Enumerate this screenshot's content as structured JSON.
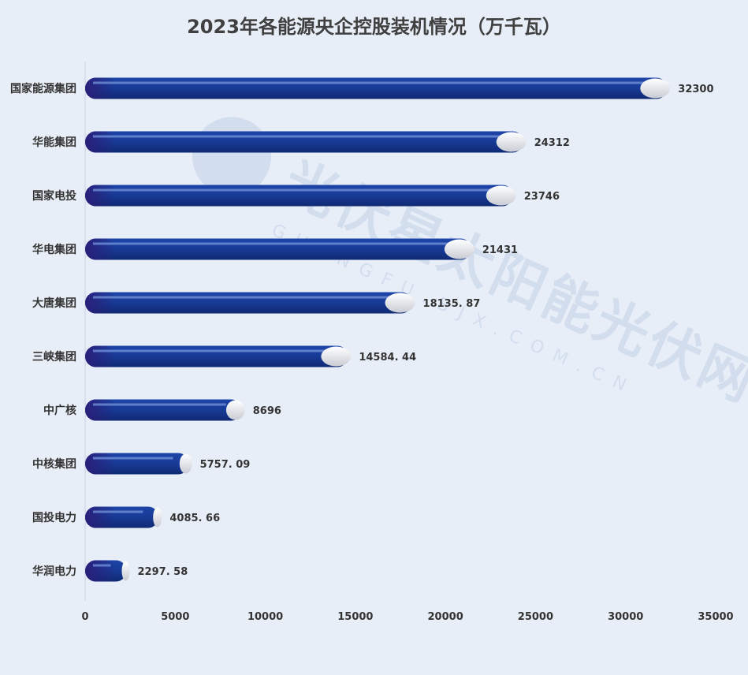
{
  "chart_data": {
    "type": "bar",
    "orientation": "horizontal",
    "title": "2023年各能源央企控股装机情况（万千瓦）",
    "categories": [
      "国家能源集团",
      "华能集团",
      "国家电投",
      "华电集团",
      "大唐集团",
      "三峡集团",
      "中广核",
      "中核集团",
      "国投电力",
      "华润电力"
    ],
    "values": [
      32300,
      24312,
      23746,
      21431,
      18135.87,
      14584.44,
      8696,
      5757.09,
      4085.66,
      2297.58
    ],
    "value_labels": [
      "32300",
      "24312",
      "23746",
      "21431",
      "18135. 87",
      "14584. 44",
      "8696",
      "5757. 09",
      "4085. 66",
      "2297. 58"
    ],
    "xlim": [
      0,
      35000
    ],
    "x_ticks": [
      "0",
      "5000",
      "10000",
      "15000",
      "20000",
      "25000",
      "30000",
      "35000"
    ],
    "xlabel": "",
    "ylabel": "",
    "grid": false,
    "bar_color": "#15338a",
    "background": "#e8eef7"
  },
  "watermark": "光伏星太阳能光伏网 GUANGFU.BJX.COM.CN"
}
